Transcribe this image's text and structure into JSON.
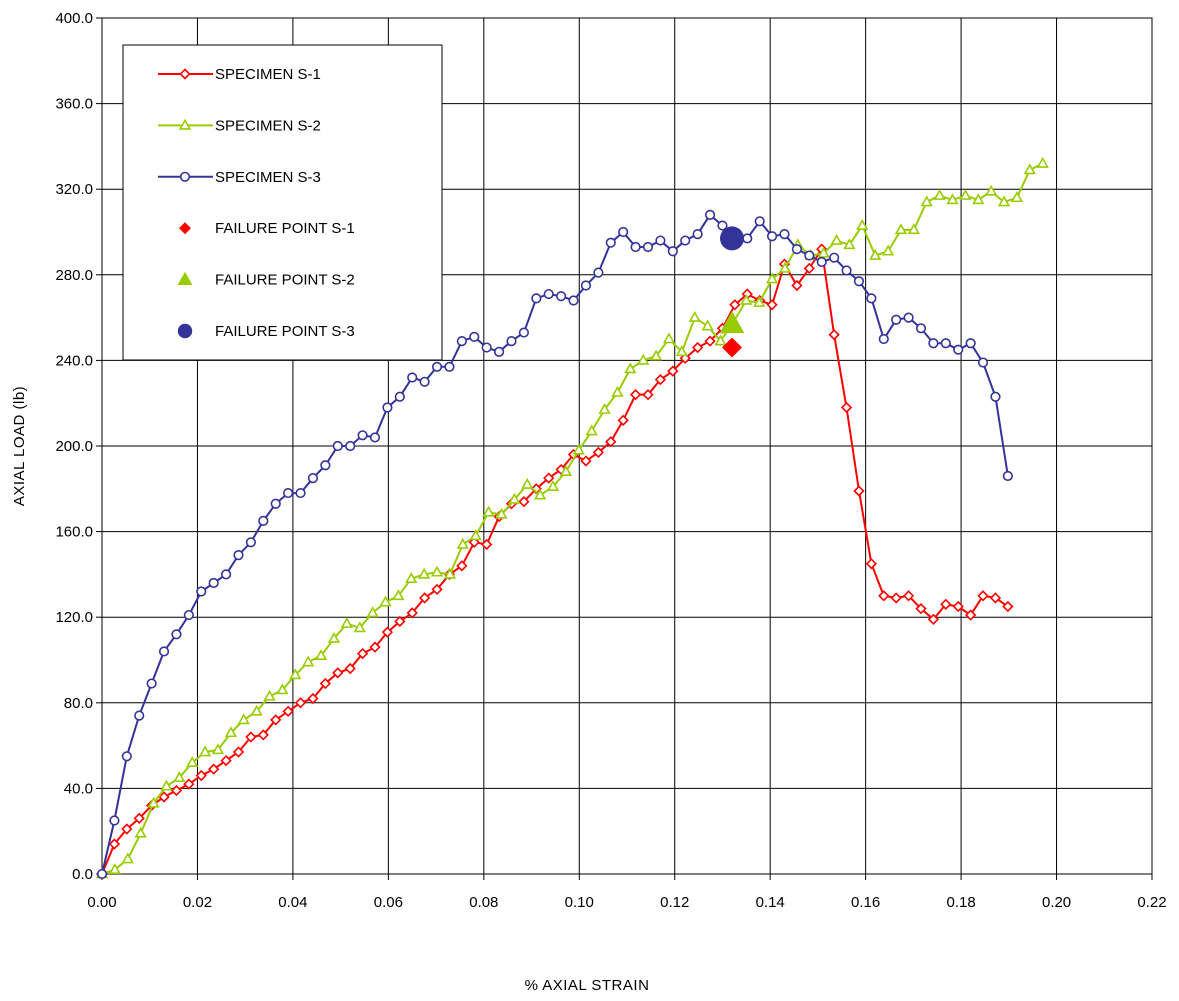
{
  "chart_data": {
    "type": "scatter",
    "title": "",
    "xlabel": "% AXIAL STRAIN",
    "ylabel": "AXIAL LOAD (lb)",
    "xlim": [
      0,
      0.22
    ],
    "ylim": [
      0,
      400
    ],
    "x_ticks": [
      "0.00",
      "0.02",
      "0.04",
      "0.06",
      "0.08",
      "0.10",
      "0.12",
      "0.14",
      "0.16",
      "0.18",
      "0.20",
      "0.22"
    ],
    "y_ticks": [
      "0.0",
      "40.0",
      "80.0",
      "120.0",
      "160.0",
      "200.0",
      "240.0",
      "280.0",
      "320.0",
      "360.0",
      "400.0"
    ],
    "grid": true,
    "legend_position": "top-left",
    "series": [
      {
        "name": "SPECIMEN S-1",
        "color": "#ff0000",
        "marker": "diamond-open",
        "line": true,
        "points": [
          [
            0.0,
            0
          ],
          [
            0.0026,
            14
          ],
          [
            0.0052,
            21
          ],
          [
            0.0078,
            26
          ],
          [
            0.0104,
            32
          ],
          [
            0.013,
            36
          ],
          [
            0.0156,
            39
          ],
          [
            0.0182,
            42
          ],
          [
            0.0208,
            46
          ],
          [
            0.0234,
            49
          ],
          [
            0.026,
            53
          ],
          [
            0.0286,
            57
          ],
          [
            0.0312,
            64
          ],
          [
            0.0338,
            65
          ],
          [
            0.0364,
            72
          ],
          [
            0.039,
            76
          ],
          [
            0.0416,
            80
          ],
          [
            0.0442,
            82
          ],
          [
            0.0468,
            89
          ],
          [
            0.0494,
            94
          ],
          [
            0.052,
            96
          ],
          [
            0.0546,
            103
          ],
          [
            0.0572,
            106
          ],
          [
            0.0598,
            113
          ],
          [
            0.0624,
            118
          ],
          [
            0.065,
            122
          ],
          [
            0.0676,
            129
          ],
          [
            0.0702,
            133
          ],
          [
            0.0728,
            140
          ],
          [
            0.0754,
            144
          ],
          [
            0.078,
            155
          ],
          [
            0.0806,
            154
          ],
          [
            0.0832,
            167
          ],
          [
            0.0858,
            173
          ],
          [
            0.0884,
            174
          ],
          [
            0.091,
            180
          ],
          [
            0.0936,
            185
          ],
          [
            0.0962,
            189
          ],
          [
            0.0988,
            196
          ],
          [
            0.1014,
            193
          ],
          [
            0.104,
            197
          ],
          [
            0.1066,
            202
          ],
          [
            0.1092,
            212
          ],
          [
            0.1118,
            224
          ],
          [
            0.1144,
            224
          ],
          [
            0.117,
            231
          ],
          [
            0.1196,
            235
          ],
          [
            0.1222,
            241
          ],
          [
            0.1248,
            246
          ],
          [
            0.1274,
            249
          ],
          [
            0.13,
            255
          ],
          [
            0.1326,
            266
          ],
          [
            0.1352,
            271
          ],
          [
            0.1378,
            268
          ],
          [
            0.1404,
            266
          ],
          [
            0.143,
            285
          ],
          [
            0.1456,
            275
          ],
          [
            0.1482,
            283
          ],
          [
            0.1508,
            292
          ],
          [
            0.1534,
            252
          ],
          [
            0.156,
            218
          ],
          [
            0.1586,
            179
          ],
          [
            0.1612,
            145
          ],
          [
            0.1638,
            130
          ],
          [
            0.1664,
            129
          ],
          [
            0.169,
            130
          ],
          [
            0.1716,
            124
          ],
          [
            0.1742,
            119
          ],
          [
            0.1768,
            126
          ],
          [
            0.1794,
            125
          ],
          [
            0.182,
            121
          ],
          [
            0.1846,
            130
          ],
          [
            0.1872,
            129
          ],
          [
            0.1898,
            125
          ]
        ]
      },
      {
        "name": "SPECIMEN S-2",
        "color": "#99cc00",
        "marker": "triangle-open",
        "line": true,
        "points": [
          [
            0.0,
            0
          ],
          [
            0.0027,
            2
          ],
          [
            0.0054,
            7
          ],
          [
            0.0081,
            19
          ],
          [
            0.0108,
            33
          ],
          [
            0.0135,
            41
          ],
          [
            0.0162,
            45
          ],
          [
            0.0189,
            52
          ],
          [
            0.0216,
            57
          ],
          [
            0.0243,
            58
          ],
          [
            0.027,
            66
          ],
          [
            0.0297,
            72
          ],
          [
            0.0324,
            76
          ],
          [
            0.0351,
            83
          ],
          [
            0.0378,
            86
          ],
          [
            0.0405,
            93
          ],
          [
            0.0432,
            99
          ],
          [
            0.0459,
            102
          ],
          [
            0.0486,
            110
          ],
          [
            0.0513,
            117
          ],
          [
            0.054,
            115
          ],
          [
            0.0567,
            122
          ],
          [
            0.0594,
            127
          ],
          [
            0.0621,
            130
          ],
          [
            0.0648,
            138
          ],
          [
            0.0675,
            140
          ],
          [
            0.0702,
            141
          ],
          [
            0.0729,
            140
          ],
          [
            0.0756,
            154
          ],
          [
            0.0783,
            158
          ],
          [
            0.081,
            169
          ],
          [
            0.0837,
            168
          ],
          [
            0.0864,
            175
          ],
          [
            0.0891,
            182
          ],
          [
            0.0918,
            177
          ],
          [
            0.0945,
            181
          ],
          [
            0.0972,
            188
          ],
          [
            0.0999,
            198
          ],
          [
            0.1026,
            207
          ],
          [
            0.1053,
            217
          ],
          [
            0.108,
            225
          ],
          [
            0.1107,
            236
          ],
          [
            0.1134,
            240
          ],
          [
            0.1161,
            242
          ],
          [
            0.1188,
            250
          ],
          [
            0.1215,
            244
          ],
          [
            0.1242,
            260
          ],
          [
            0.1269,
            256
          ],
          [
            0.1296,
            249
          ],
          [
            0.1323,
            258
          ],
          [
            0.135,
            268
          ],
          [
            0.1377,
            267
          ],
          [
            0.1404,
            278
          ],
          [
            0.1431,
            283
          ],
          [
            0.1458,
            294
          ],
          [
            0.1485,
            289
          ],
          [
            0.1512,
            290
          ],
          [
            0.1539,
            296
          ],
          [
            0.1566,
            294
          ],
          [
            0.1593,
            303
          ],
          [
            0.162,
            289
          ],
          [
            0.1647,
            291
          ],
          [
            0.1674,
            301
          ],
          [
            0.1701,
            301
          ],
          [
            0.1728,
            314
          ],
          [
            0.1755,
            317
          ],
          [
            0.1782,
            315
          ],
          [
            0.1809,
            317
          ],
          [
            0.1836,
            315
          ],
          [
            0.1863,
            319
          ],
          [
            0.189,
            314
          ],
          [
            0.1917,
            316
          ],
          [
            0.1944,
            329
          ],
          [
            0.1971,
            332
          ]
        ]
      },
      {
        "name": "SPECIMEN S-3",
        "color": "#333399",
        "marker": "circle-open",
        "line": true,
        "points": [
          [
            0.0,
            0
          ],
          [
            0.0026,
            25
          ],
          [
            0.0052,
            55
          ],
          [
            0.0078,
            74
          ],
          [
            0.0104,
            89
          ],
          [
            0.013,
            104
          ],
          [
            0.0156,
            112
          ],
          [
            0.0182,
            121
          ],
          [
            0.0208,
            132
          ],
          [
            0.0234,
            136
          ],
          [
            0.026,
            140
          ],
          [
            0.0286,
            149
          ],
          [
            0.0312,
            155
          ],
          [
            0.0338,
            165
          ],
          [
            0.0364,
            173
          ],
          [
            0.039,
            178
          ],
          [
            0.0416,
            178
          ],
          [
            0.0442,
            185
          ],
          [
            0.0468,
            191
          ],
          [
            0.0494,
            200
          ],
          [
            0.052,
            200
          ],
          [
            0.0546,
            205
          ],
          [
            0.0572,
            204
          ],
          [
            0.0598,
            218
          ],
          [
            0.0624,
            223
          ],
          [
            0.065,
            232
          ],
          [
            0.0676,
            230
          ],
          [
            0.0702,
            237
          ],
          [
            0.0728,
            237
          ],
          [
            0.0754,
            249
          ],
          [
            0.078,
            251
          ],
          [
            0.0806,
            246
          ],
          [
            0.0832,
            244
          ],
          [
            0.0858,
            249
          ],
          [
            0.0884,
            253
          ],
          [
            0.091,
            269
          ],
          [
            0.0936,
            271
          ],
          [
            0.0962,
            270
          ],
          [
            0.0988,
            268
          ],
          [
            0.1014,
            275
          ],
          [
            0.104,
            281
          ],
          [
            0.1066,
            295
          ],
          [
            0.1092,
            300
          ],
          [
            0.1118,
            293
          ],
          [
            0.1144,
            293
          ],
          [
            0.117,
            296
          ],
          [
            0.1196,
            291
          ],
          [
            0.1222,
            296
          ],
          [
            0.1248,
            299
          ],
          [
            0.1274,
            308
          ],
          [
            0.13,
            303
          ],
          [
            0.1326,
            298
          ],
          [
            0.1352,
            297
          ],
          [
            0.1378,
            305
          ],
          [
            0.1404,
            298
          ],
          [
            0.143,
            299
          ],
          [
            0.1456,
            292
          ],
          [
            0.1482,
            289
          ],
          [
            0.1508,
            286
          ],
          [
            0.1534,
            288
          ],
          [
            0.156,
            282
          ],
          [
            0.1586,
            277
          ],
          [
            0.1612,
            269
          ],
          [
            0.1638,
            250
          ],
          [
            0.1664,
            259
          ],
          [
            0.169,
            260
          ],
          [
            0.1716,
            255
          ],
          [
            0.1742,
            248
          ],
          [
            0.1768,
            248
          ],
          [
            0.1794,
            245
          ],
          [
            0.182,
            248
          ],
          [
            0.1846,
            239
          ],
          [
            0.1872,
            223
          ],
          [
            0.1898,
            186
          ]
        ]
      },
      {
        "name": "FAILURE POINT S-1",
        "color": "#ff0000",
        "marker": "diamond-filled",
        "line": false,
        "points": [
          [
            0.132,
            246
          ]
        ]
      },
      {
        "name": "FAILURE POINT S-2",
        "color": "#99cc00",
        "marker": "triangle-filled",
        "line": false,
        "points": [
          [
            0.132,
            257
          ]
        ]
      },
      {
        "name": "FAILURE POINT S-3",
        "color": "#333399",
        "marker": "circle-filled",
        "line": false,
        "points": [
          [
            0.132,
            297
          ]
        ]
      }
    ]
  }
}
